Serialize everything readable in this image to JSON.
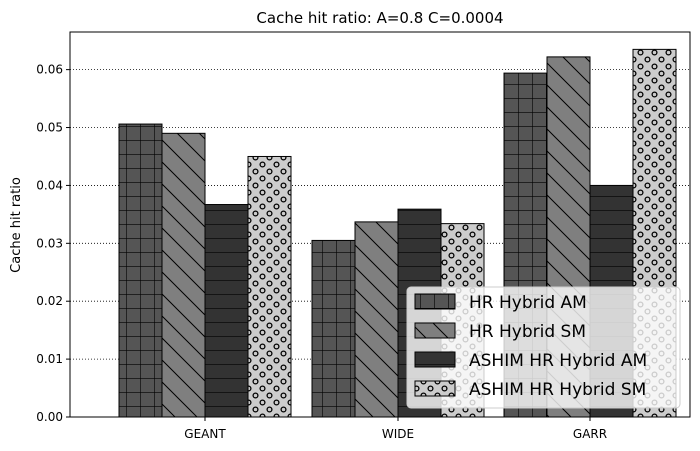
{
  "chart_data": {
    "type": "bar",
    "title": "Cache hit ratio: A=0.8 C=0.0004",
    "xlabel": "",
    "ylabel": "Cache hit ratio",
    "categories": [
      "GEANT",
      "WIDE",
      "GARR"
    ],
    "ylim": [
      0,
      0.0665
    ],
    "yticks": [
      0.0,
      0.01,
      0.02,
      0.03,
      0.04,
      0.05,
      0.06
    ],
    "ytick_labels": [
      "0.00",
      "0.01",
      "0.02",
      "0.03",
      "0.04",
      "0.05",
      "0.06"
    ],
    "grid": "horizontal dotted",
    "legend_position": "bottom-right",
    "series": [
      {
        "name": "HR Hybrid AM",
        "values": [
          0.0506,
          0.0305,
          0.0594
        ],
        "color": "#555555",
        "hatch": "grid"
      },
      {
        "name": "HR Hybrid SM",
        "values": [
          0.049,
          0.0337,
          0.0622
        ],
        "color": "#7f7f7f",
        "hatch": "diagonal"
      },
      {
        "name": "ASHIM HR Hybrid AM",
        "values": [
          0.0367,
          0.0359,
          0.04
        ],
        "color": "#333333",
        "hatch": "horizontal"
      },
      {
        "name": "ASHIM HR Hybrid SM",
        "values": [
          0.045,
          0.0334,
          0.0635
        ],
        "color": "#cccccc",
        "hatch": "circles"
      }
    ]
  }
}
